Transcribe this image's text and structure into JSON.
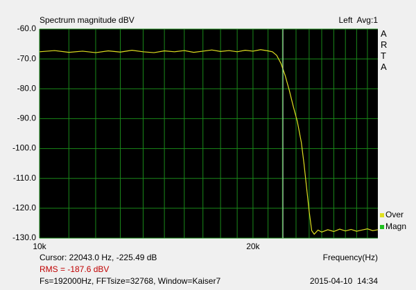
{
  "chart_data": {
    "type": "line",
    "title": "Spectrum magnitude dBV",
    "channel": "Left  Avg:1",
    "brand": "ARTA",
    "x_label": "Frequency(Hz)",
    "cursor": {
      "value": 22043,
      "label": "Cursor: 22043.0 Hz, -225.49 dB"
    },
    "rms": "RMS = -187.6 dBV",
    "settings": "Fs=192000Hz, FFTsize=32768, Window=Kaiser7",
    "timestamp": "2015-04-10  14:34",
    "log_x": true,
    "grid": true,
    "xlim": [
      10000,
      30000
    ],
    "ylim": [
      -130,
      -60
    ],
    "xticks": [
      {
        "value": 10000,
        "label": "10k"
      },
      {
        "value": 20000,
        "label": "20k"
      }
    ],
    "x_minor_grid": [
      11000,
      12000,
      13000,
      14000,
      15000,
      16000,
      17000,
      18000,
      19000,
      21000,
      22000,
      23000,
      24000,
      25000,
      26000,
      27000,
      28000,
      29000
    ],
    "yticks": [
      {
        "value": -60,
        "label": "-60.0"
      },
      {
        "value": -70,
        "label": "-70.0"
      },
      {
        "value": -80,
        "label": "-80.0"
      },
      {
        "value": -90,
        "label": "-90.0"
      },
      {
        "value": -100,
        "label": "-100.0"
      },
      {
        "value": -110,
        "label": "-110.0"
      },
      {
        "value": -120,
        "label": "-120.0"
      },
      {
        "value": -130,
        "label": "-130.0"
      }
    ],
    "x": [
      10000,
      10500,
      11000,
      11500,
      12000,
      12500,
      13000,
      13500,
      14000,
      14500,
      15000,
      15500,
      16000,
      16500,
      17000,
      17500,
      18000,
      18500,
      19000,
      19500,
      20000,
      20500,
      21000,
      21300,
      21600,
      21900,
      22200,
      22500,
      22800,
      23100,
      23400,
      23600,
      23800,
      24000,
      24200,
      24400,
      24700,
      25000,
      25500,
      26000,
      26500,
      27000,
      27500,
      28000,
      28500,
      29000,
      29500,
      30000
    ],
    "series": [
      {
        "name": "Over",
        "color": "#e0e020",
        "values": [
          -67.6,
          -67.2,
          -67.8,
          -67.4,
          -67.9,
          -67.3,
          -67.7,
          -67.1,
          -67.6,
          -67.9,
          -67.3,
          -67.6,
          -67.2,
          -67.8,
          -67.4,
          -67.0,
          -67.5,
          -67.2,
          -67.6,
          -67.1,
          -67.4,
          -66.9,
          -67.3,
          -67.6,
          -68.8,
          -71.5,
          -75.5,
          -80.5,
          -86.0,
          -91.0,
          -98.0,
          -105.0,
          -113.0,
          -121.0,
          -127.5,
          -128.7,
          -127.3,
          -128.0,
          -127.2,
          -127.8,
          -127.0,
          -127.6,
          -127.1,
          -127.7,
          -127.3,
          -126.9,
          -127.5,
          -127.2
        ]
      },
      {
        "name": "Magn",
        "color": "#20c020",
        "values": [
          null,
          null,
          null,
          null,
          null,
          null,
          null,
          null,
          null,
          null,
          null,
          null,
          null,
          null,
          null,
          null,
          null,
          null,
          null,
          null,
          null,
          null,
          null,
          null,
          null,
          null,
          null,
          null,
          null,
          null,
          null,
          null,
          null,
          null,
          null,
          null,
          null,
          null,
          null,
          null,
          null,
          null,
          null,
          null,
          null,
          null,
          null,
          null
        ]
      }
    ]
  }
}
